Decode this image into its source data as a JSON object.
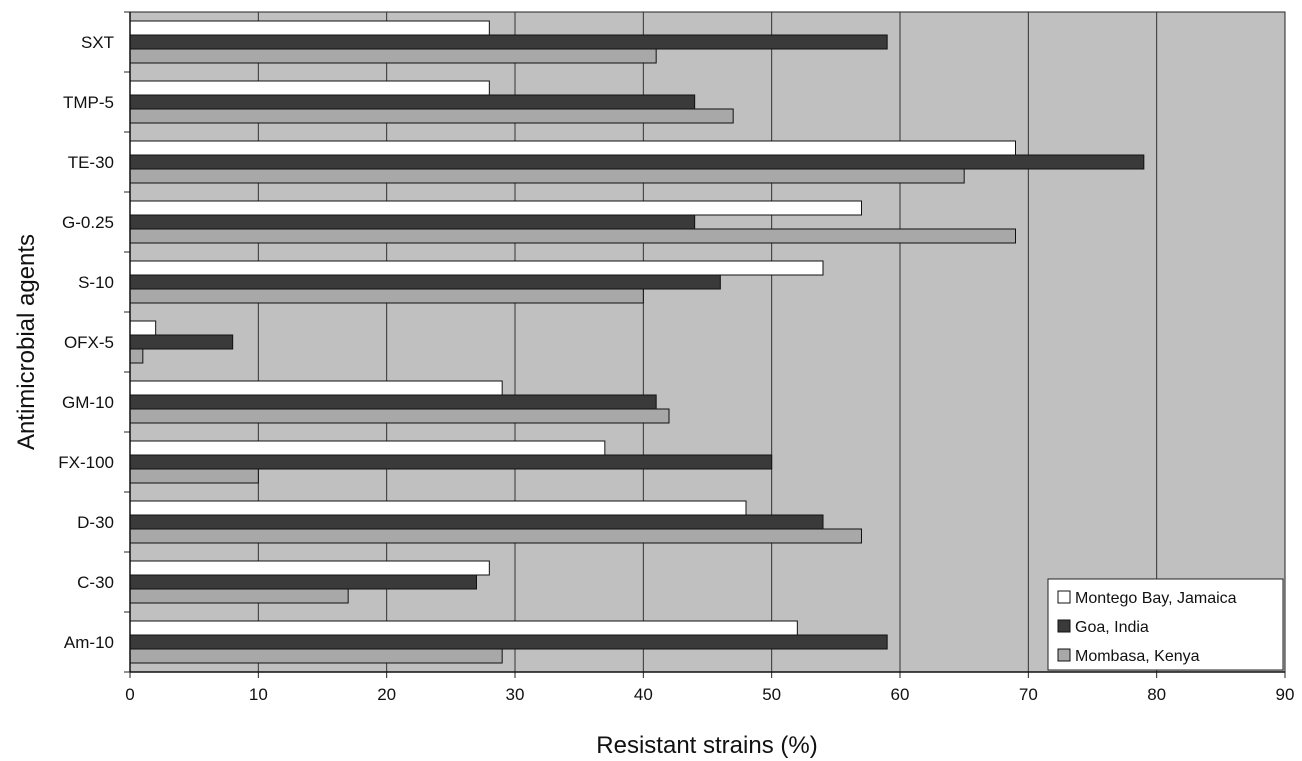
{
  "chart_data": {
    "type": "bar",
    "orientation": "horizontal",
    "categories": [
      "SXT",
      "TMP-5",
      "TE-30",
      "G-0.25",
      "S-10",
      "OFX-5",
      "GM-10",
      "FX-100",
      "D-30",
      "C-30",
      "Am-10"
    ],
    "series": [
      {
        "name": "Montego Bay, Jamaica",
        "color": "#ffffff",
        "values": [
          28,
          28,
          69,
          57,
          54,
          2,
          29,
          37,
          48,
          28,
          52
        ]
      },
      {
        "name": "Goa, India",
        "color": "#3a3a3a",
        "values": [
          59,
          44,
          79,
          44,
          46,
          8,
          41,
          50,
          54,
          27,
          59
        ]
      },
      {
        "name": "Mombasa, Kenya",
        "color": "#a8a8a8",
        "values": [
          41,
          47,
          65,
          69,
          40,
          1,
          42,
          10,
          57,
          17,
          29
        ]
      }
    ],
    "xlabel": "Resistant strains (%)",
    "ylabel": "Antimicrobial agents",
    "xlim": [
      0,
      90
    ],
    "xticks": [
      "0",
      "10",
      "20",
      "30",
      "40",
      "50",
      "60",
      "70",
      "80",
      "90"
    ],
    "grid": true,
    "plot_background": "#c0c0c0",
    "legend_position": "bottom-right"
  }
}
